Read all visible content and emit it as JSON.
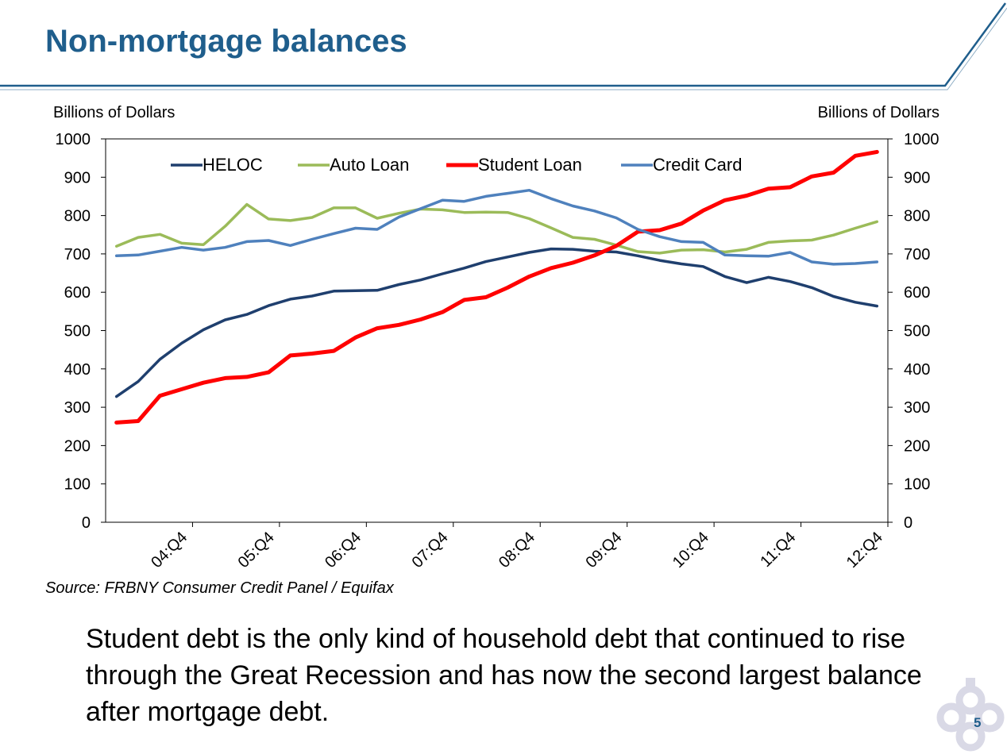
{
  "slide": {
    "title": "Non-mortgage balances",
    "source": "Source: FRBNY Consumer Credit Panel / Equifax",
    "body": "Student debt is the only kind of household debt that continued to rise through the Great Recession and has now the second largest balance after mortgage debt.",
    "page_number": "5"
  },
  "colors": {
    "title": "#1f5e8c",
    "HELOC": "#1f3f6e",
    "Auto Loan": "#9bbb59",
    "Student Loan": "#ff0000",
    "Credit Card": "#4f81bd"
  },
  "chart_data": {
    "type": "line",
    "ylabel_left": "Billions of Dollars",
    "ylabel_right": "Billions of Dollars",
    "ylim": [
      0,
      1000
    ],
    "yticks": [
      0,
      100,
      200,
      300,
      400,
      500,
      600,
      700,
      800,
      900,
      1000
    ],
    "x_tick_labels": [
      "04:Q4",
      "05:Q4",
      "06:Q4",
      "07:Q4",
      "08:Q4",
      "09:Q4",
      "10:Q4",
      "11:Q4",
      "12:Q4"
    ],
    "x_tick_index": [
      3,
      7,
      11,
      15,
      19,
      23,
      27,
      31,
      35
    ],
    "legend_position": "top",
    "grid": false,
    "series": [
      {
        "name": "HELOC",
        "values": [
          328,
          367,
          425,
          467,
          502,
          528,
          542,
          565,
          582,
          590,
          603,
          604,
          605,
          620,
          632,
          648,
          663,
          680,
          692,
          704,
          713,
          712,
          707,
          705,
          695,
          683,
          674,
          667,
          641,
          625,
          639,
          628,
          612,
          589,
          574,
          564
        ]
      },
      {
        "name": "Auto Loan",
        "values": [
          720,
          743,
          751,
          728,
          724,
          772,
          829,
          791,
          787,
          795,
          820,
          820,
          793,
          806,
          817,
          815,
          808,
          809,
          808,
          792,
          768,
          743,
          738,
          723,
          706,
          702,
          710,
          711,
          705,
          712,
          730,
          734,
          736,
          749,
          767,
          784
        ]
      },
      {
        "name": "Student Loan",
        "values": [
          260,
          264,
          330,
          347,
          364,
          376,
          379,
          391,
          435,
          440,
          447,
          482,
          506,
          515,
          529,
          548,
          580,
          587,
          612,
          641,
          663,
          677,
          696,
          721,
          758,
          762,
          779,
          813,
          840,
          852,
          870,
          874,
          902,
          912,
          956,
          966
        ]
      },
      {
        "name": "Credit Card",
        "values": [
          695,
          697,
          707,
          717,
          710,
          717,
          732,
          735,
          722,
          738,
          753,
          767,
          764,
          796,
          818,
          840,
          837,
          850,
          858,
          866,
          844,
          825,
          812,
          794,
          764,
          745,
          732,
          730,
          697,
          695,
          694,
          704,
          679,
          673,
          675,
          679
        ]
      }
    ]
  }
}
